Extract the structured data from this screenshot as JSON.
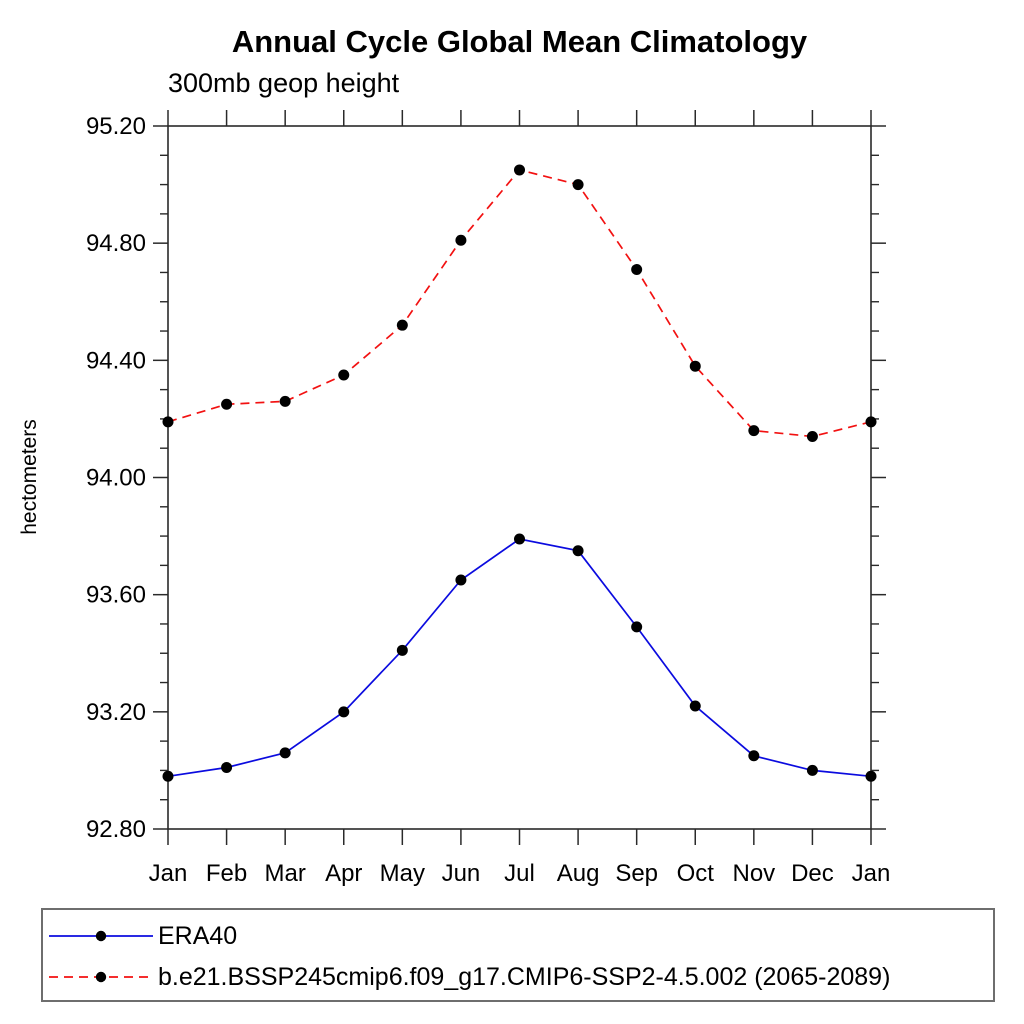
{
  "chart_data": {
    "type": "line",
    "title": "Annual Cycle Global Mean Climatology",
    "subtitle": "300mb geop height",
    "ylabel": "hectometers",
    "xlabel": "",
    "x_tick_labels": [
      "Jan",
      "Feb",
      "Mar",
      "Apr",
      "May",
      "Jun",
      "Jul",
      "Aug",
      "Sep",
      "Oct",
      "Nov",
      "Dec",
      "Jan"
    ],
    "ylim": [
      92.8,
      95.2
    ],
    "y_major_tick_labels": [
      "95.20",
      "94.80",
      "94.40",
      "94.00",
      "93.60",
      "93.20",
      "92.80"
    ],
    "y_major_step": 0.4,
    "y_minor_step": 0.1,
    "grid": false,
    "legend_position": "bottom-left-box",
    "axis_color": "#2a2a2a",
    "series": [
      {
        "name": "ERA40",
        "color": "#0b0bdf",
        "style": "solid",
        "marker": "circle",
        "marker_color": "#000000",
        "values": [
          92.98,
          93.01,
          93.06,
          93.2,
          93.41,
          93.65,
          93.79,
          93.75,
          93.49,
          93.22,
          93.05,
          93.0,
          92.98
        ]
      },
      {
        "name": "b.e21.BSSP245cmip6.f09_g17.CMIP6-SSP2-4.5.002 (2065-2089)",
        "color": "#f21111",
        "style": "dashed",
        "marker": "circle",
        "marker_color": "#000000",
        "values": [
          94.19,
          94.25,
          94.26,
          94.35,
          94.52,
          94.81,
          95.05,
          95.0,
          94.71,
          94.38,
          94.16,
          94.14,
          94.19
        ]
      }
    ]
  }
}
